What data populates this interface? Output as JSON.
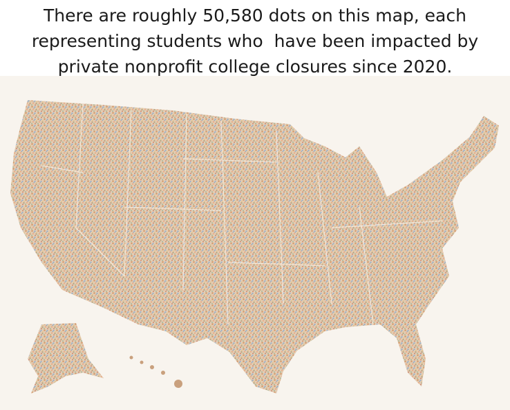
{
  "caption": {
    "lines": [
      "There are roughly 50,580 dots on this map, each",
      "representing students who  have been impacted by",
      "private nonprofit college closures since 2020."
    ]
  }
}
